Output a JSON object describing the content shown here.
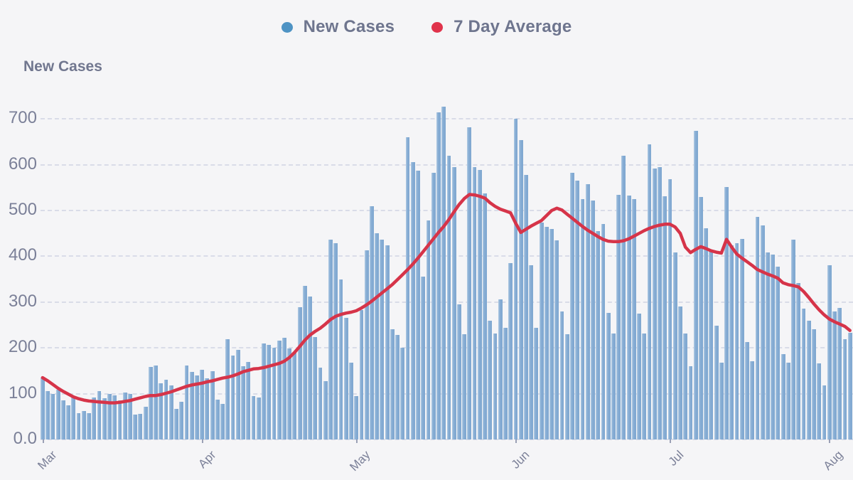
{
  "legend": {
    "items": [
      {
        "label": "New Cases",
        "dot_color": "#4E93C4"
      },
      {
        "label": "7 Day Average",
        "dot_color": "#E0334B"
      }
    ]
  },
  "y_axis_title": "New Cases",
  "colors": {
    "background": "#F5F5F7",
    "gridline": "#D9DCE8",
    "text": "#757B95",
    "bar": "#7FA7D0",
    "bar_highlight": "#B3CCE4",
    "line": "#D63449"
  },
  "chart_data": {
    "type": "bar",
    "title": "",
    "xlabel": "",
    "ylabel": "New Cases",
    "ylim": [
      0,
      750
    ],
    "grid": "horizontal-dashed",
    "legend_position": "top-center",
    "num_days": 158,
    "x_axis": {
      "tick_labels": [
        "Mar",
        "Apr",
        "May",
        "Jun",
        "Jul",
        "Aug"
      ],
      "tick_day_index": [
        0,
        31,
        61,
        92,
        122,
        153
      ]
    },
    "y_axis": {
      "tick_labels": [
        "0.0",
        "100",
        "200",
        "300",
        "400",
        "500",
        "600",
        "700"
      ],
      "tick_values": [
        0,
        100,
        200,
        300,
        400,
        500,
        600,
        700
      ]
    },
    "series": [
      {
        "name": "New Cases",
        "type": "bar",
        "color": "#7FA7D0",
        "values": [
          135,
          105,
          100,
          108,
          85,
          75,
          92,
          58,
          62,
          58,
          92,
          105,
          90,
          100,
          97,
          85,
          103,
          100,
          55,
          56,
          72,
          159,
          162,
          123,
          131,
          118,
          66,
          82,
          162,
          147,
          140,
          152,
          134,
          149,
          87,
          77,
          219,
          183,
          196,
          160,
          170,
          95,
          92,
          209,
          206,
          201,
          216,
          222,
          198,
          190,
          289,
          336,
          312,
          224,
          157,
          128,
          437,
          428,
          350,
          265,
          167,
          95,
          283,
          413,
          509,
          450,
          437,
          424,
          240,
          229,
          200,
          660,
          605,
          587,
          356,
          478,
          582,
          714,
          726,
          619,
          595,
          295,
          230,
          681,
          594,
          589,
          537,
          260,
          231,
          306,
          244,
          385,
          700,
          653,
          577,
          381,
          244,
          473,
          464,
          460,
          435,
          279,
          230,
          583,
          565,
          525,
          558,
          522,
          455,
          470,
          276,
          232,
          534,
          620,
          532,
          525,
          275,
          232,
          645,
          591,
          594,
          531,
          569,
          409,
          290,
          231,
          160,
          674,
          530,
          461,
          413,
          248,
          167,
          551,
          424,
          429,
          438,
          212,
          171,
          486,
          468,
          409,
          404,
          377,
          187,
          167,
          437,
          342,
          285,
          260,
          240,
          166,
          118,
          380,
          279,
          287,
          219,
          233
        ]
      },
      {
        "name": "7 Day Average",
        "type": "line",
        "color": "#D63449",
        "values": [
          135,
          128,
          120,
          112,
          105,
          99,
          93,
          89,
          86,
          84,
          83,
          82,
          81,
          80,
          80,
          81,
          83,
          85,
          88,
          91,
          94,
          96,
          96,
          98,
          101,
          104,
          108,
          112,
          116,
          119,
          121,
          123,
          126,
          128,
          131,
          134,
          136,
          139,
          143,
          148,
          151,
          154,
          155,
          157,
          160,
          163,
          166,
          171,
          179,
          190,
          203,
          217,
          228,
          236,
          243,
          252,
          262,
          269,
          273,
          276,
          278,
          281,
          287,
          294,
          302,
          311,
          320,
          329,
          338,
          349,
          360,
          371,
          383,
          396,
          410,
          424,
          438,
          452,
          465,
          480,
          497,
          513,
          526,
          535,
          534,
          531,
          527,
          517,
          509,
          503,
          499,
          495,
          472,
          452,
          459,
          466,
          472,
          478,
          489,
          500,
          505,
          501,
          492,
          483,
          474,
          465,
          457,
          450,
          443,
          437,
          433,
          432,
          432,
          434,
          438,
          444,
          450,
          456,
          461,
          465,
          468,
          470,
          470,
          464,
          450,
          420,
          408,
          415,
          421,
          417,
          412,
          409,
          407,
          437,
          420,
          405,
          396,
          388,
          380,
          371,
          366,
          361,
          357,
          352,
          342,
          338,
          336,
          333,
          323,
          310,
          296,
          283,
          272,
          263,
          257,
          252,
          247,
          238
        ]
      }
    ]
  }
}
